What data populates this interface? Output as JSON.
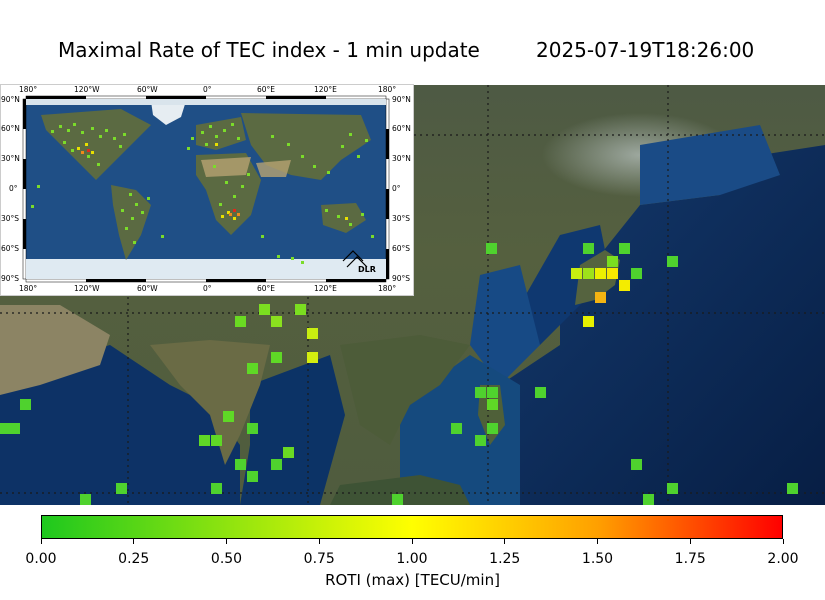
{
  "title": {
    "main": "Maximal Rate of TEC index - 1 min update",
    "timestamp": "2025-07-19T18:26:00"
  },
  "colors": {
    "ocean": "#0b2a55",
    "land": "#556043",
    "scale_low": "#1ec81e",
    "scale_mid": "#ffff00",
    "scale_high": "#ff0000"
  },
  "inset": {
    "lon_ticks": [
      "180°",
      "120°W",
      "60°W",
      "0°",
      "60°E",
      "120°E",
      "180°"
    ],
    "lat_ticks": [
      "90°N",
      "60°N",
      "30°N",
      "0°",
      "30°S",
      "60°S",
      "90°S"
    ],
    "logo_text": "DLR"
  },
  "colorbar": {
    "ticks": [
      "0.00",
      "0.25",
      "0.50",
      "0.75",
      "1.00",
      "1.25",
      "1.50",
      "1.75",
      "2.00"
    ],
    "min": 0,
    "max": 2,
    "label": "ROTI (max) [TECU/min]"
  }
}
